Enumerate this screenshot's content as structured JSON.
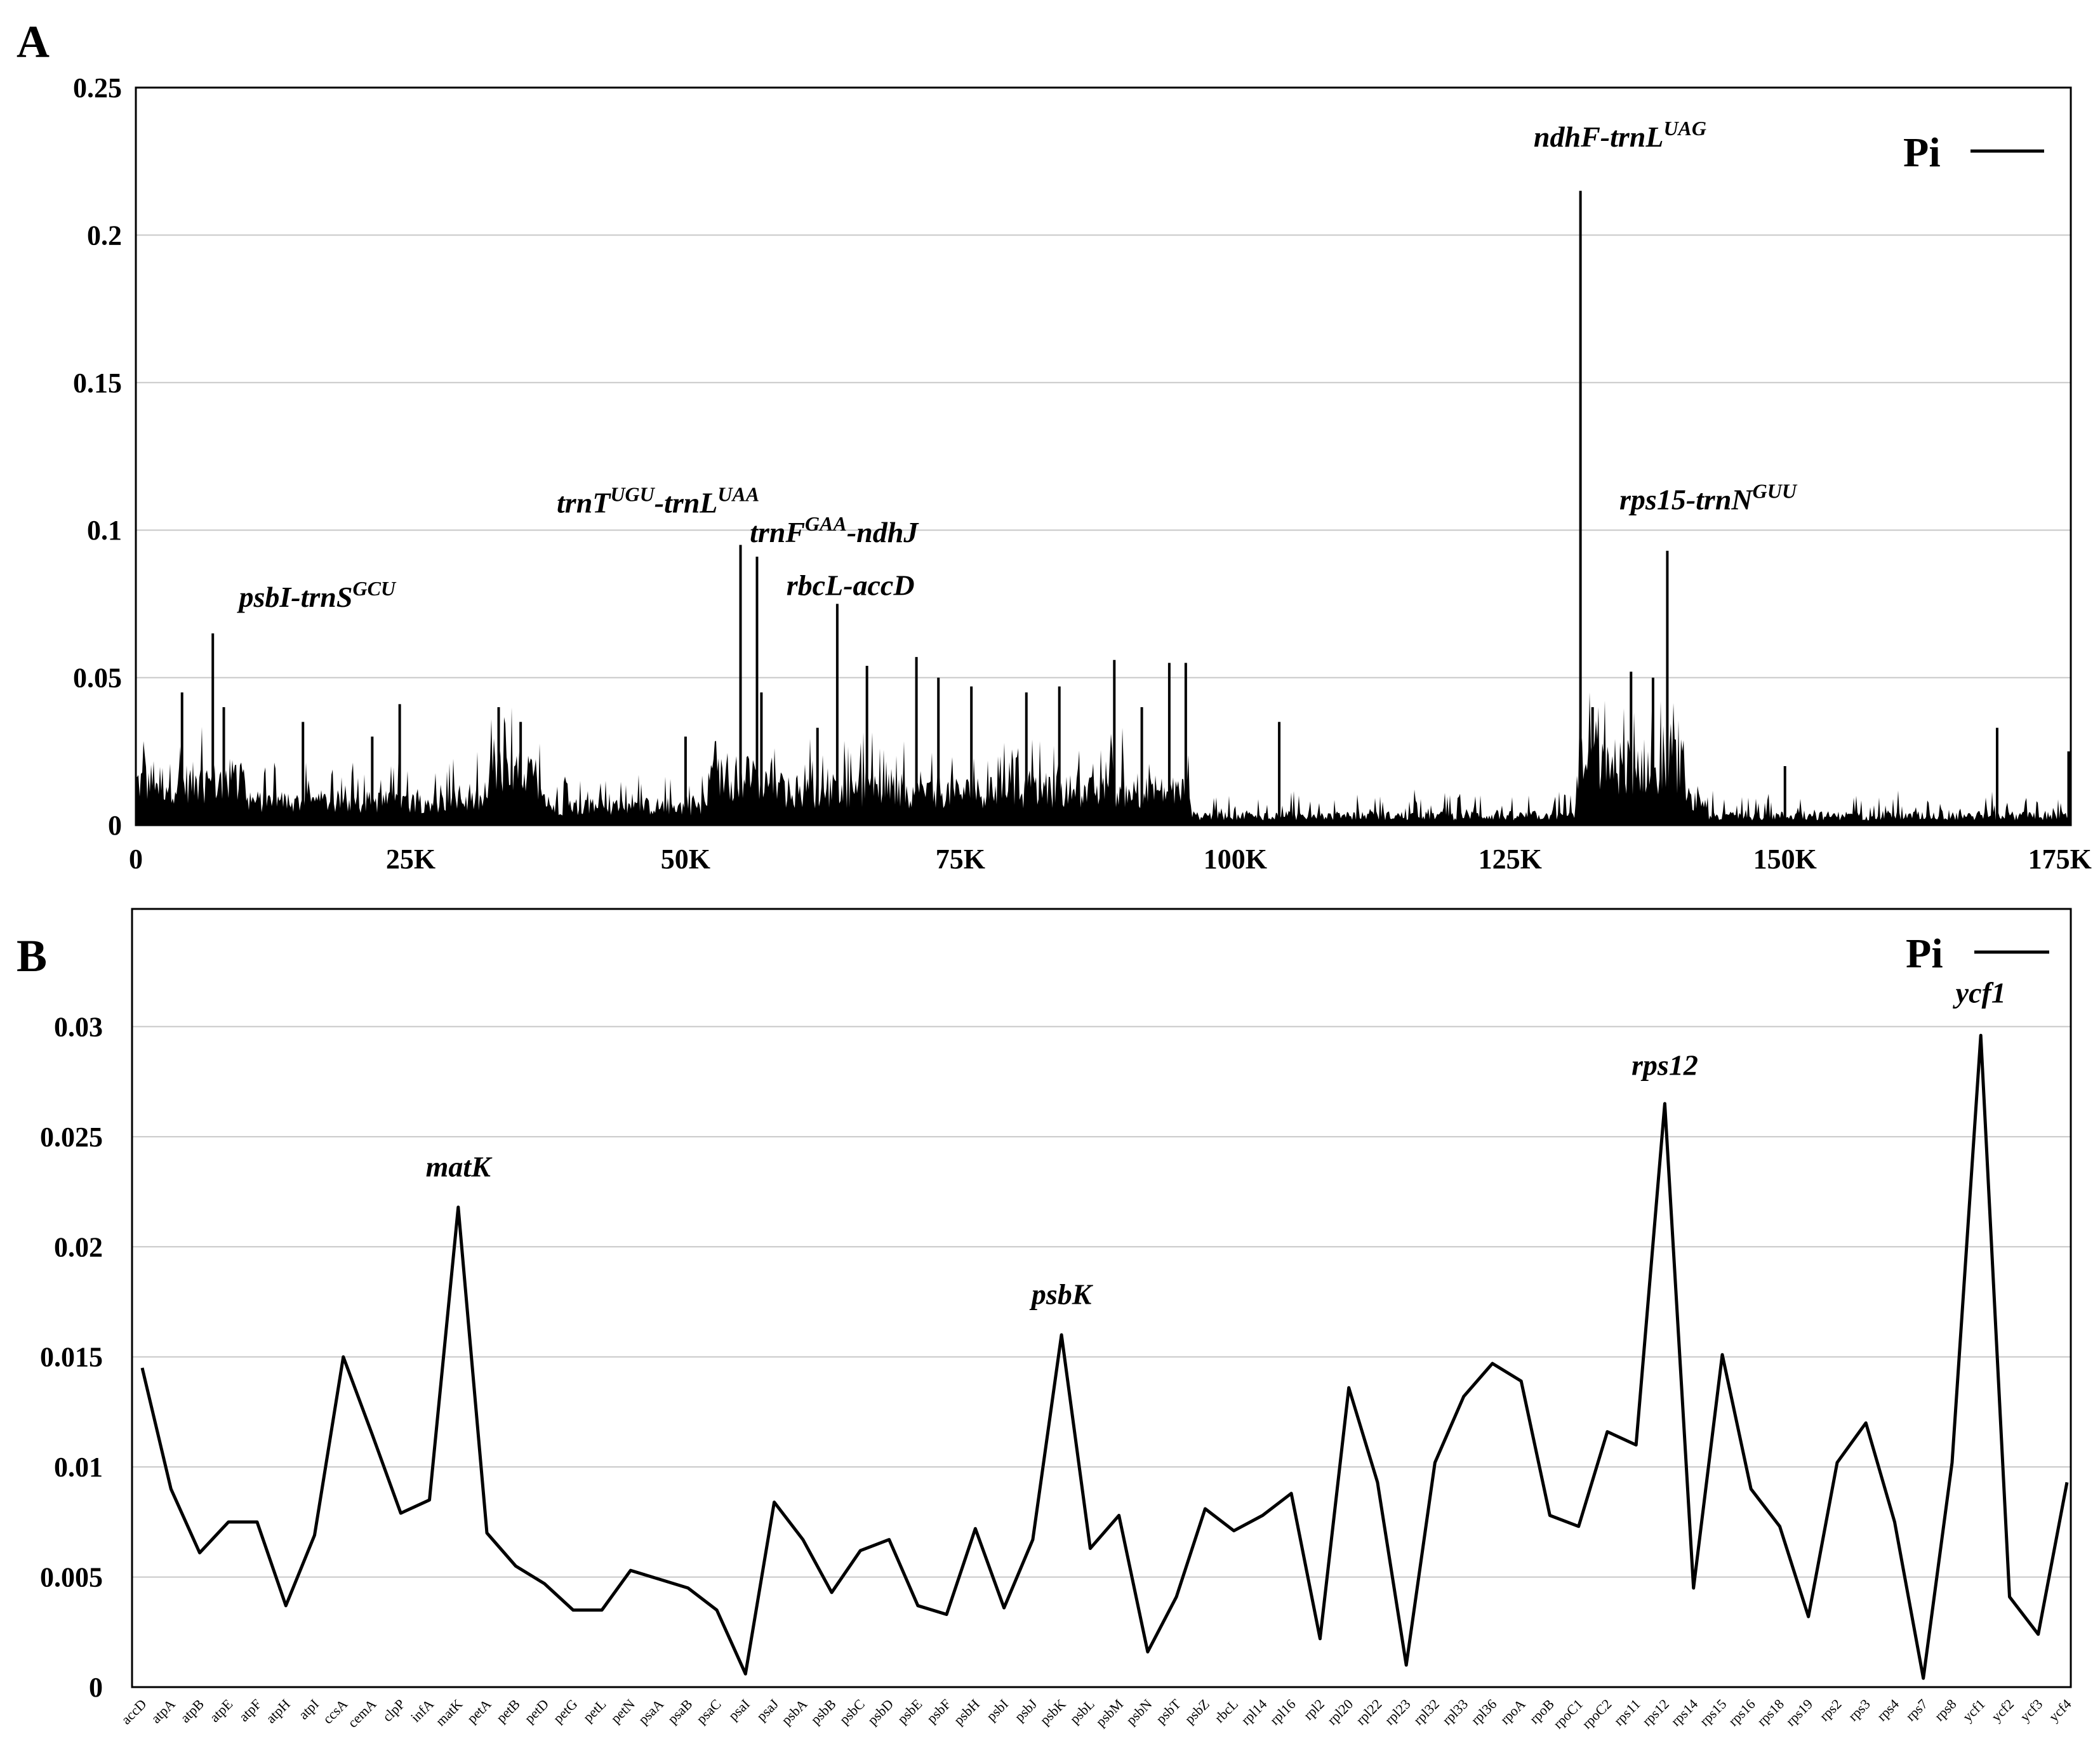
{
  "chart_data": [
    {
      "panel": "A",
      "type": "area",
      "xlim": [
        0,
        176000
      ],
      "ylim": [
        0,
        0.25
      ],
      "x_ticks": [
        {
          "label": "0",
          "value": 0
        },
        {
          "label": "25K",
          "value": 25000
        },
        {
          "label": "50K",
          "value": 50000
        },
        {
          "label": "75K",
          "value": 75000
        },
        {
          "label": "100K",
          "value": 100000
        },
        {
          "label": "125K",
          "value": 125000
        },
        {
          "label": "150K",
          "value": 150000
        },
        {
          "label": "175K",
          "value": 175000
        }
      ],
      "y_ticks": [
        {
          "label": "0",
          "value": 0
        },
        {
          "label": "0.05",
          "value": 0.05
        },
        {
          "label": "0.1",
          "value": 0.1
        },
        {
          "label": "0.15",
          "value": 0.15
        },
        {
          "label": "0.2",
          "value": 0.2
        },
        {
          "label": "0.25",
          "value": 0.25
        }
      ],
      "grid": true,
      "legend": {
        "label": "Pi",
        "position": "top-right"
      },
      "segments": [
        {
          "x0": 0,
          "x1": 10000,
          "base": 0.018,
          "amp": 0.017
        },
        {
          "x0": 10000,
          "x1": 32000,
          "base": 0.01,
          "amp": 0.014
        },
        {
          "x0": 32000,
          "x1": 37000,
          "base": 0.02,
          "amp": 0.02
        },
        {
          "x0": 37000,
          "x1": 52000,
          "base": 0.008,
          "amp": 0.012
        },
        {
          "x0": 52000,
          "x1": 58000,
          "base": 0.02,
          "amp": 0.018
        },
        {
          "x0": 58000,
          "x1": 96000,
          "base": 0.014,
          "amp": 0.018
        },
        {
          "x0": 96000,
          "x1": 131000,
          "base": 0.004,
          "amp": 0.008
        },
        {
          "x0": 131000,
          "x1": 141000,
          "base": 0.025,
          "amp": 0.022
        },
        {
          "x0": 141000,
          "x1": 143000,
          "base": 0.01,
          "amp": 0.008
        },
        {
          "x0": 143000,
          "x1": 176000,
          "base": 0.004,
          "amp": 0.008
        }
      ],
      "peaks": [
        {
          "x": 4200,
          "y": 0.045
        },
        {
          "x": 7000,
          "y": 0.065
        },
        {
          "x": 8000,
          "y": 0.04
        },
        {
          "x": 15200,
          "y": 0.035
        },
        {
          "x": 21500,
          "y": 0.03
        },
        {
          "x": 24000,
          "y": 0.041
        },
        {
          "x": 33000,
          "y": 0.04
        },
        {
          "x": 35000,
          "y": 0.035
        },
        {
          "x": 50000,
          "y": 0.03
        },
        {
          "x": 55000,
          "y": 0.095
        },
        {
          "x": 56500,
          "y": 0.091
        },
        {
          "x": 56900,
          "y": 0.045
        },
        {
          "x": 62000,
          "y": 0.033
        },
        {
          "x": 63800,
          "y": 0.075
        },
        {
          "x": 66500,
          "y": 0.054
        },
        {
          "x": 71000,
          "y": 0.057
        },
        {
          "x": 73000,
          "y": 0.05
        },
        {
          "x": 76000,
          "y": 0.047
        },
        {
          "x": 81000,
          "y": 0.045
        },
        {
          "x": 84000,
          "y": 0.047
        },
        {
          "x": 89000,
          "y": 0.056
        },
        {
          "x": 91500,
          "y": 0.04
        },
        {
          "x": 94000,
          "y": 0.055
        },
        {
          "x": 95500,
          "y": 0.055
        },
        {
          "x": 104000,
          "y": 0.035
        },
        {
          "x": 131400,
          "y": 0.215
        },
        {
          "x": 132500,
          "y": 0.04
        },
        {
          "x": 136000,
          "y": 0.052
        },
        {
          "x": 138000,
          "y": 0.05
        },
        {
          "x": 139300,
          "y": 0.093
        },
        {
          "x": 150000,
          "y": 0.02
        },
        {
          "x": 169300,
          "y": 0.033
        },
        {
          "x": 175800,
          "y": 0.025
        }
      ],
      "annotations": [
        {
          "x": 16500,
          "y": 0.074,
          "base": "psbI-trnS",
          "sup": "GCU"
        },
        {
          "x": 47500,
          "y": 0.106,
          "base": "trnT",
          "sup": "UGU",
          "mid": "-trnL",
          "sup2": "UAA"
        },
        {
          "x": 63500,
          "y": 0.096,
          "base": "trnF",
          "sup": "GAA",
          "mid": "-ndhJ"
        },
        {
          "x": 65000,
          "y": 0.078,
          "base": "rbcL-accD"
        },
        {
          "x": 135000,
          "y": 0.23,
          "base": "ndhF-trnL",
          "sup": "UAG"
        },
        {
          "x": 143000,
          "y": 0.107,
          "base": "rps15-trnN",
          "sup": "GUU"
        }
      ]
    },
    {
      "panel": "B",
      "type": "line",
      "ylim": [
        0,
        0.035
      ],
      "y_ticks": [
        {
          "label": "0",
          "value": 0
        },
        {
          "label": "0.005",
          "value": 0.005
        },
        {
          "label": "0.01",
          "value": 0.01
        },
        {
          "label": "0.015",
          "value": 0.015
        },
        {
          "label": "0.02",
          "value": 0.02
        },
        {
          "label": "0.025",
          "value": 0.025
        },
        {
          "label": "0.03",
          "value": 0.03
        }
      ],
      "grid": true,
      "legend": {
        "label": "Pi",
        "position": "top-right"
      },
      "categories": [
        "accD",
        "atpA",
        "atpB",
        "atpE",
        "atpF",
        "atpH",
        "atpI",
        "ccsA",
        "cemA",
        "clpP",
        "infA",
        "matK",
        "petA",
        "petB",
        "petD",
        "petG",
        "petL",
        "petN",
        "psaA",
        "psaB",
        "psaC",
        "psaI",
        "psaJ",
        "psbA",
        "psbB",
        "psbC",
        "psbD",
        "psbE",
        "psbF",
        "psbH",
        "psbI",
        "psbJ",
        "psbK",
        "psbL",
        "psbM",
        "psbN",
        "psbT",
        "psbZ",
        "rbcL",
        "rpl14",
        "rpl16",
        "rpl2",
        "rpl20",
        "rpl22",
        "rpl23",
        "rpl32",
        "rpl33",
        "rpl36",
        "rpoA",
        "rpoB",
        "rpoC1",
        "rpoC2",
        "rps11",
        "rps12",
        "rps14",
        "rps15",
        "rps16",
        "rps18",
        "rps19",
        "rps2",
        "rps3",
        "rps4",
        "rps7",
        "rps8",
        "ycf1",
        "ycf2",
        "ycf3",
        "ycf4"
      ],
      "values": [
        0.0145,
        0.009,
        0.0061,
        0.0075,
        0.0075,
        0.0037,
        0.0069,
        0.015,
        0.0115,
        0.0079,
        0.0085,
        0.0218,
        0.007,
        0.0055,
        0.0047,
        0.0035,
        0.0035,
        0.0053,
        0.0049,
        0.0045,
        0.0035,
        0.0006,
        0.0084,
        0.0067,
        0.0043,
        0.0062,
        0.0067,
        0.0037,
        0.0033,
        0.0072,
        0.0036,
        0.0067,
        0.016,
        0.0063,
        0.0078,
        0.0016,
        0.0041,
        0.0081,
        0.0071,
        0.0078,
        0.0088,
        0.0022,
        0.0136,
        0.0093,
        0.001,
        0.0102,
        0.0132,
        0.0147,
        0.0139,
        0.0078,
        0.0073,
        0.0116,
        0.011,
        0.0265,
        0.0045,
        0.0151,
        0.009,
        0.0073,
        0.0032,
        0.0102,
        0.012,
        0.0075,
        0.0004,
        0.0102,
        0.0296,
        0.0041,
        0.0024,
        0.0093
      ],
      "annotations": [
        {
          "category": "matK",
          "y": 0.0232,
          "label": "matK"
        },
        {
          "category": "psbK",
          "y": 0.0174,
          "label": "psbK"
        },
        {
          "category": "rps12",
          "y": 0.0278,
          "label": "rps12"
        },
        {
          "category": "ycf1",
          "y": 0.0311,
          "label": "ycf1"
        }
      ]
    }
  ]
}
